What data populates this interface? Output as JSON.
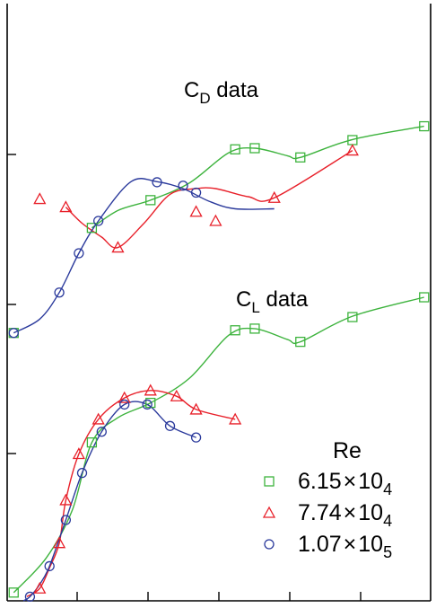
{
  "chart_data": [
    {
      "id": "cd",
      "type": "line",
      "annotation": {
        "main": "C",
        "sub": "D",
        "rest": " data"
      },
      "series": [
        {
          "name": "6.15×10^4",
          "color": "#3db33d",
          "marker": "square",
          "points": [
            [
              -0.8,
              0.1
            ],
            [
              0.4,
              1.92
            ],
            [
              1.3,
              2.4
            ],
            [
              2.6,
              3.28
            ],
            [
              2.9,
              3.3
            ],
            [
              3.6,
              3.14
            ],
            [
              4.4,
              3.44
            ],
            [
              5.5,
              3.68
            ]
          ],
          "curve": [
            [
              0.4,
              1.92
            ],
            [
              0.8,
              2.22
            ],
            [
              1.3,
              2.4
            ],
            [
              1.9,
              2.7
            ],
            [
              2.5,
              3.22
            ],
            [
              2.9,
              3.3
            ],
            [
              3.4,
              3.17
            ],
            [
              3.6,
              3.14
            ],
            [
              4.4,
              3.45
            ],
            [
              5.5,
              3.68
            ]
          ]
        },
        {
          "name": "7.74×10^4",
          "color": "#e8202a",
          "marker": "triangle",
          "points": [
            [
              -0.4,
              2.42
            ],
            [
              0.0,
              2.28
            ],
            [
              0.8,
              1.58
            ],
            [
              2.0,
              2.2
            ],
            [
              2.3,
              2.04
            ],
            [
              3.2,
              2.44
            ],
            [
              4.4,
              3.26
            ]
          ],
          "curve": [
            [
              0.0,
              2.28
            ],
            [
              0.25,
              2.0
            ],
            [
              0.55,
              1.76
            ],
            [
              0.8,
              1.58
            ],
            [
              1.2,
              2.0
            ],
            [
              1.6,
              2.5
            ],
            [
              2.0,
              2.6
            ],
            [
              2.3,
              2.6
            ],
            [
              2.8,
              2.46
            ],
            [
              3.2,
              2.44
            ],
            [
              4.4,
              3.26
            ]
          ]
        },
        {
          "name": "1.07×10^5",
          "color": "#2b3a9c",
          "marker": "circle",
          "points": [
            [
              -0.8,
              0.1
            ],
            [
              -0.1,
              0.8
            ],
            [
              0.2,
              1.48
            ],
            [
              0.5,
              2.04
            ],
            [
              1.4,
              2.71
            ],
            [
              1.8,
              2.65
            ],
            [
              2.0,
              2.53
            ]
          ],
          "curve": [
            [
              -0.8,
              0.1
            ],
            [
              -0.4,
              0.34
            ],
            [
              -0.1,
              0.8
            ],
            [
              0.2,
              1.48
            ],
            [
              0.5,
              2.04
            ],
            [
              1.0,
              2.72
            ],
            [
              1.4,
              2.72
            ],
            [
              1.8,
              2.6
            ],
            [
              2.2,
              2.38
            ],
            [
              2.6,
              2.25
            ],
            [
              3.2,
              2.25
            ]
          ]
        }
      ]
    },
    {
      "id": "cl",
      "type": "line",
      "annotation": {
        "main": "C",
        "sub": "L",
        "rest": " data"
      },
      "series": [
        {
          "name": "6.15×10^4",
          "color": "#3db33d",
          "marker": "square",
          "points": [
            [
              -0.8,
              0.1
            ],
            [
              0.4,
              1.92
            ],
            [
              1.3,
              2.4
            ],
            [
              2.6,
              3.28
            ],
            [
              2.9,
              3.3
            ],
            [
              3.6,
              3.14
            ],
            [
              4.4,
              3.44
            ],
            [
              5.5,
              3.68
            ]
          ],
          "curve": [
            [
              -0.8,
              0.1
            ],
            [
              -0.3,
              0.52
            ],
            [
              0.1,
              1.1
            ],
            [
              0.4,
              1.92
            ],
            [
              0.8,
              2.22
            ],
            [
              1.3,
              2.4
            ],
            [
              1.9,
              2.7
            ],
            [
              2.5,
              3.22
            ],
            [
              2.9,
              3.3
            ],
            [
              3.4,
              3.17
            ],
            [
              3.6,
              3.14
            ],
            [
              4.4,
              3.45
            ],
            [
              5.5,
              3.68
            ]
          ]
        },
        {
          "name": "7.74×10^4",
          "color": "#e8202a",
          "marker": "triangle",
          "points": [
            [
              -0.4,
              0.15
            ],
            [
              -0.1,
              0.7
            ],
            [
              0.0,
              1.22
            ],
            [
              0.2,
              1.78
            ],
            [
              0.5,
              2.2
            ],
            [
              0.9,
              2.46
            ],
            [
              1.3,
              2.55
            ],
            [
              1.7,
              2.48
            ],
            [
              2.0,
              2.32
            ],
            [
              2.6,
              2.2
            ]
          ],
          "curve": [
            [
              -0.6,
              0.05
            ],
            [
              -0.4,
              0.15
            ],
            [
              -0.25,
              0.4
            ],
            [
              -0.1,
              0.7
            ],
            [
              0.0,
              1.22
            ],
            [
              0.2,
              1.78
            ],
            [
              0.5,
              2.2
            ],
            [
              0.9,
              2.46
            ],
            [
              1.3,
              2.55
            ],
            [
              1.7,
              2.48
            ],
            [
              2.0,
              2.32
            ],
            [
              2.6,
              2.2
            ]
          ]
        },
        {
          "name": "1.07×10^5",
          "color": "#2b3a9c",
          "marker": "circle",
          "points": [
            [
              -0.55,
              0.05
            ],
            [
              -0.25,
              0.42
            ],
            [
              0.0,
              0.98
            ],
            [
              0.25,
              1.55
            ],
            [
              0.55,
              2.05
            ],
            [
              0.9,
              2.38
            ],
            [
              1.25,
              2.38
            ],
            [
              1.6,
              2.12
            ],
            [
              2.0,
              1.98
            ]
          ],
          "curve": [
            [
              -0.65,
              0.0
            ],
            [
              -0.55,
              0.05
            ],
            [
              -0.4,
              0.2
            ],
            [
              -0.25,
              0.42
            ],
            [
              0.0,
              0.98
            ],
            [
              0.25,
              1.55
            ],
            [
              0.55,
              2.05
            ],
            [
              0.9,
              2.38
            ],
            [
              1.25,
              2.38
            ],
            [
              1.6,
              2.12
            ],
            [
              2.0,
              1.98
            ]
          ]
        }
      ]
    }
  ],
  "legend": {
    "title": "Re",
    "items": [
      {
        "marker": "square",
        "color": "#3db33d",
        "mantissa": "6.15",
        "times": "×",
        "base": "10",
        "exp": "4"
      },
      {
        "marker": "triangle",
        "color": "#e8202a",
        "mantissa": "7.74",
        "times": "×",
        "base": "10",
        "exp": "4"
      },
      {
        "marker": "circle",
        "color": "#2b3a9c",
        "mantissa": "1.07",
        "times": "×",
        "base": "10",
        "exp": "5"
      }
    ]
  }
}
